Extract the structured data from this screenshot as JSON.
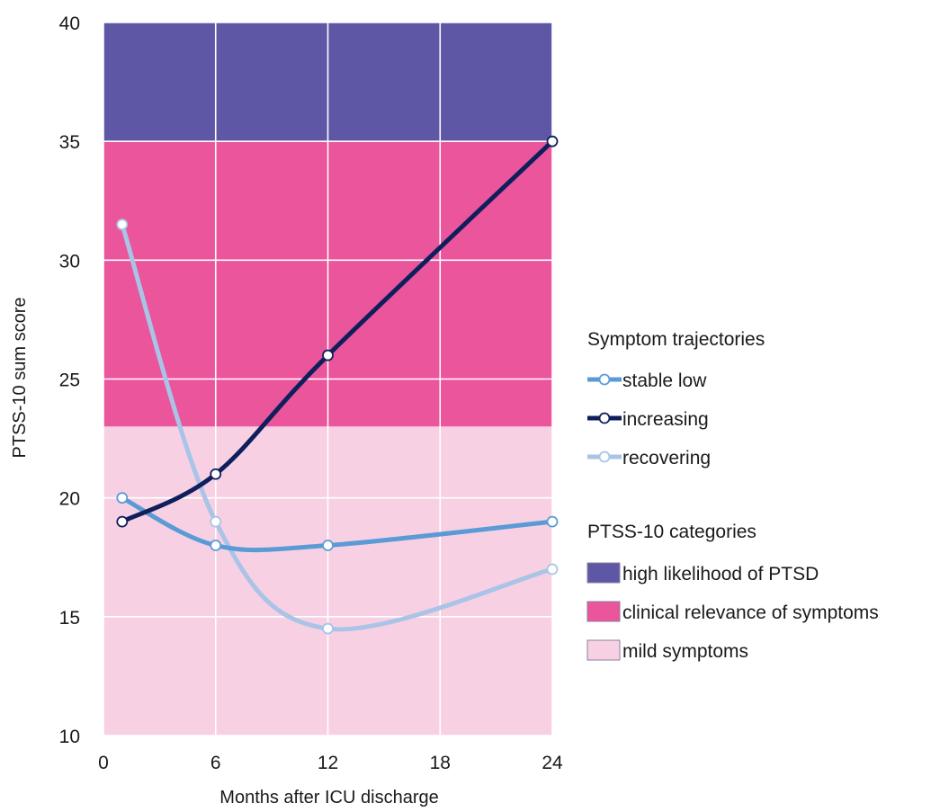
{
  "chart_data": {
    "type": "line",
    "xlabel": "Months after ICU discharge",
    "ylabel": "PTSS-10 sum score",
    "xlim": [
      0,
      24
    ],
    "ylim": [
      10,
      40
    ],
    "xticks": [
      "0",
      "6",
      "12",
      "18",
      "24"
    ],
    "yticks": [
      "10",
      "15",
      "20",
      "25",
      "30",
      "35",
      "40"
    ],
    "x_tick_values": [
      0,
      6,
      12,
      18,
      24
    ],
    "y_tick_values": [
      10,
      15,
      20,
      25,
      30,
      35,
      40
    ],
    "grid": true,
    "series": [
      {
        "name": "stable low",
        "color": "#5b9bd5",
        "x": [
          1,
          6,
          12,
          24
        ],
        "y": [
          20,
          18,
          18,
          19
        ]
      },
      {
        "name": "increasing",
        "color": "#0f1f5c",
        "x": [
          1,
          6,
          12,
          24
        ],
        "y": [
          19,
          21,
          26,
          35
        ]
      },
      {
        "name": "recovering",
        "color": "#a9c4e6",
        "x": [
          1,
          6,
          12,
          24
        ],
        "y": [
          31.5,
          19,
          14.5,
          17
        ]
      }
    ],
    "bands": [
      {
        "name": "high likelihood of PTSD",
        "color": "#5e57a5",
        "from": 35,
        "to": 40
      },
      {
        "name": "clinical relevance of symptoms",
        "color": "#ea559c",
        "from": 23,
        "to": 35
      },
      {
        "name": "mild symptoms",
        "color": "#f8d0e3",
        "from": 10,
        "to": 23
      }
    ],
    "legend": {
      "placement": "right",
      "trajectories_title": "Symptom trajectories",
      "categories_title": "PTSS-10 categories"
    }
  }
}
